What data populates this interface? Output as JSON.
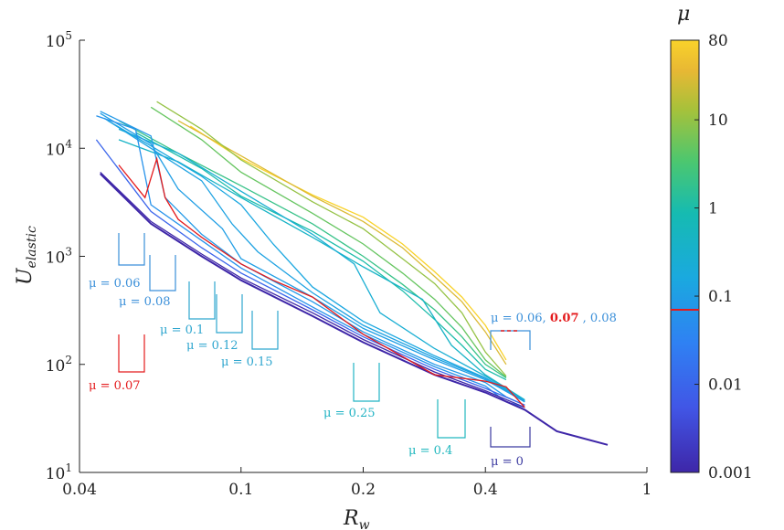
{
  "chart_data": {
    "type": "line",
    "title": "",
    "xlabel": "R",
    "xlabel_sub": "w",
    "ylabel": "U",
    "ylabel_sub": "elastic",
    "xscale": "log",
    "yscale": "log",
    "xlim": [
      0.04,
      1
    ],
    "ylim": [
      10,
      100000
    ],
    "x_ticks": [
      0.04,
      0.1,
      0.2,
      0.4,
      1
    ],
    "x_tick_labels": [
      "0.04",
      "0.1",
      "0.2",
      "0.4",
      "1"
    ],
    "y_ticks": [
      10,
      100,
      1000,
      10000,
      100000
    ],
    "y_tick_base": "10",
    "y_tick_exponents": [
      "1",
      "2",
      "3",
      "4",
      "5"
    ],
    "colorbar": {
      "title": "μ",
      "scale": "log",
      "range": [
        0.001,
        80
      ],
      "tick_values": [
        0.001,
        0.01,
        0.1,
        1,
        10,
        80
      ],
      "tick_labels": [
        "0.001",
        "0.01",
        "0.1",
        "1",
        "10",
        "80"
      ],
      "highlight_value": 0.07,
      "highlight_color": "#e41a1c"
    },
    "series_note": "Family of curves, one per friction coefficient mu, colored by mu; the mu = 0.07 curve is highlighted in red.",
    "series": [
      {
        "name": "mu=0",
        "mu": 0,
        "x": [
          0.045,
          0.06,
          0.08,
          0.1,
          0.15,
          0.2,
          0.3,
          0.4,
          0.5,
          0.6,
          0.8
        ],
        "y": [
          5800,
          2000,
          1000,
          600,
          280,
          160,
          80,
          55,
          38,
          24,
          18
        ]
      },
      {
        "name": "mu=0.001",
        "mu": 0.001,
        "x": [
          0.045,
          0.06,
          0.08,
          0.1,
          0.15,
          0.2,
          0.3,
          0.4,
          0.5
        ],
        "y": [
          6000,
          2100,
          1050,
          630,
          300,
          170,
          85,
          57,
          40
        ]
      },
      {
        "name": "mu=0.01",
        "mu": 0.01,
        "x": [
          0.044,
          0.06,
          0.08,
          0.1,
          0.15,
          0.2,
          0.3,
          0.4,
          0.5
        ],
        "y": [
          12000,
          2600,
          1200,
          700,
          320,
          180,
          90,
          60,
          42
        ]
      },
      {
        "name": "mu=0.06",
        "mu": 0.06,
        "x": [
          0.044,
          0.055,
          0.06,
          0.08,
          0.1,
          0.15,
          0.2,
          0.3,
          0.4,
          0.45,
          0.48,
          0.5
        ],
        "y": [
          20000,
          15000,
          3000,
          1400,
          780,
          340,
          190,
          95,
          63,
          45,
          42,
          40
        ]
      },
      {
        "name": "mu=0.07",
        "mu": 0.07,
        "x": [
          0.05,
          0.058,
          0.062,
          0.065,
          0.07,
          0.08,
          0.1,
          0.12,
          0.15,
          0.2,
          0.3,
          0.4,
          0.45,
          0.5
        ],
        "y": [
          7000,
          3500,
          8000,
          3500,
          2200,
          1500,
          850,
          600,
          420,
          190,
          80,
          70,
          62,
          40
        ]
      },
      {
        "name": "mu=0.08",
        "mu": 0.08,
        "x": [
          0.045,
          0.06,
          0.065,
          0.08,
          0.1,
          0.15,
          0.2,
          0.3,
          0.4,
          0.45,
          0.5
        ],
        "y": [
          22000,
          13000,
          3500,
          1600,
          850,
          380,
          200,
          100,
          68,
          50,
          42
        ]
      },
      {
        "name": "mu=0.1",
        "mu": 0.1,
        "x": [
          0.045,
          0.06,
          0.07,
          0.09,
          0.1,
          0.15,
          0.2,
          0.3,
          0.4,
          0.5
        ],
        "y": [
          21000,
          11000,
          4200,
          1800,
          950,
          420,
          215,
          110,
          72,
          45
        ]
      },
      {
        "name": "mu=0.12",
        "mu": 0.12,
        "x": [
          0.046,
          0.06,
          0.08,
          0.095,
          0.11,
          0.15,
          0.2,
          0.3,
          0.4,
          0.5
        ],
        "y": [
          19000,
          10000,
          5000,
          2000,
          1100,
          460,
          230,
          115,
          74,
          45
        ]
      },
      {
        "name": "mu=0.15",
        "mu": 0.15,
        "x": [
          0.047,
          0.06,
          0.08,
          0.1,
          0.12,
          0.15,
          0.2,
          0.3,
          0.4,
          0.5
        ],
        "y": [
          18000,
          10500,
          5500,
          3000,
          1300,
          520,
          250,
          120,
          75,
          46
        ]
      },
      {
        "name": "mu=0.25",
        "mu": 0.25,
        "x": [
          0.05,
          0.07,
          0.1,
          0.15,
          0.19,
          0.22,
          0.3,
          0.4,
          0.5
        ],
        "y": [
          15000,
          9000,
          4000,
          1600,
          850,
          300,
          140,
          78,
          46
        ]
      },
      {
        "name": "mu=0.4",
        "mu": 0.4,
        "x": [
          0.05,
          0.07,
          0.1,
          0.15,
          0.2,
          0.28,
          0.33,
          0.4,
          0.5
        ],
        "y": [
          12000,
          7500,
          3500,
          1500,
          800,
          400,
          150,
          80,
          47
        ]
      },
      {
        "name": "mu=1",
        "mu": 1,
        "x": [
          0.055,
          0.08,
          0.1,
          0.15,
          0.2,
          0.25,
          0.3,
          0.35,
          0.4,
          0.45
        ],
        "y": [
          14000,
          6500,
          3600,
          1700,
          900,
          480,
          260,
          150,
          90,
          72
        ]
      },
      {
        "name": "mu=2",
        "mu": 2,
        "x": [
          0.05,
          0.07,
          0.1,
          0.15,
          0.2,
          0.25,
          0.3,
          0.35,
          0.4,
          0.45
        ],
        "y": [
          18000,
          9000,
          4500,
          2000,
          1000,
          550,
          320,
          180,
          100,
          75
        ]
      },
      {
        "name": "mu=5",
        "mu": 5,
        "x": [
          0.06,
          0.08,
          0.1,
          0.15,
          0.2,
          0.25,
          0.3,
          0.35,
          0.4,
          0.45
        ],
        "y": [
          24000,
          12000,
          6000,
          2500,
          1300,
          700,
          400,
          220,
          110,
          76
        ]
      },
      {
        "name": "mu=10",
        "mu": 10,
        "x": [
          0.062,
          0.08,
          0.1,
          0.15,
          0.2,
          0.25,
          0.3,
          0.35,
          0.4,
          0.45
        ],
        "y": [
          27000,
          15000,
          7800,
          3200,
          1800,
          950,
          560,
          300,
          130,
          78
        ]
      },
      {
        "name": "mu=30",
        "mu": 30,
        "x": [
          0.07,
          0.1,
          0.15,
          0.2,
          0.25,
          0.3,
          0.35,
          0.4,
          0.45
        ],
        "y": [
          18000,
          8500,
          3600,
          2100,
          1200,
          650,
          380,
          200,
          100
        ]
      },
      {
        "name": "mu=80",
        "mu": 80,
        "x": [
          0.075,
          0.1,
          0.15,
          0.2,
          0.25,
          0.3,
          0.35,
          0.4,
          0.45
        ],
        "y": [
          16000,
          8000,
          3700,
          2300,
          1300,
          720,
          420,
          230,
          110
        ]
      }
    ],
    "annotations": [
      {
        "text": "μ = 0.06",
        "color": "#3a8fd9"
      },
      {
        "text": "μ = 0.08",
        "color": "#3a8fd9"
      },
      {
        "text": "μ = 0.1",
        "color": "#2fa6cf"
      },
      {
        "text": "μ = 0.12",
        "color": "#2fa6cf"
      },
      {
        "text": "μ = 0.15",
        "color": "#2fa6cf"
      },
      {
        "text": "μ = 0.25",
        "color": "#22b3c4"
      },
      {
        "text": "μ = 0.4",
        "color": "#22b8bf"
      },
      {
        "text": "μ = 0.07",
        "color": "#e41a1c"
      },
      {
        "text": "μ = 0",
        "color": "#3b3aa0"
      }
    ],
    "combo_annotation": {
      "prefix": "μ = 0.06,",
      "mid": "0.07",
      "suffix": ", 0.08",
      "prefix_color": "#3a8fd9",
      "mid_color": "#e41a1c",
      "suffix_color": "#3a8fd9"
    }
  }
}
